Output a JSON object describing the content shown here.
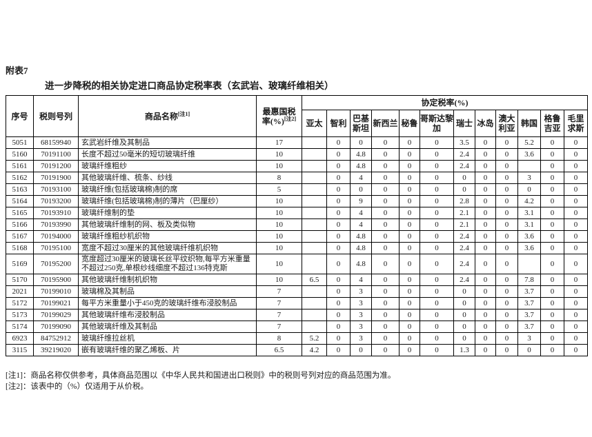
{
  "page": {
    "appendix_label": "附表7",
    "title": "进一步降税的相关协定进口商品协定税率表（玄武岩、玻璃纤维相关）",
    "notes": [
      "[注1]：商品名称仅供参考，具体商品范围以《中华人民共和国进出口税则》中的税则号列对应的商品范围为准。",
      "[注2]：该表中的（%）仅适用于从价税。"
    ]
  },
  "table": {
    "headers": {
      "serial": "序号",
      "tariff_code": "税则号列",
      "product_name": "商品名称",
      "product_name_sup": "[注1]",
      "mfn_line1": "最惠国税",
      "mfn_line2": "率(%)",
      "mfn_sup": "[注2]",
      "agreement_group": "协定税率(%)",
      "countries": [
        "亚太",
        "智利",
        "巴基斯坦",
        "新西兰",
        "秘鲁",
        "哥斯达黎加",
        "瑞士",
        "冰岛",
        "澳大利亚",
        "韩国",
        "格鲁吉亚",
        "毛里求斯"
      ]
    },
    "rows": [
      {
        "serial": "5051",
        "code": "68159940",
        "name": "玄武岩纤维及其制品",
        "mfn": "17",
        "rates": [
          "",
          "0",
          "0",
          "0",
          "0",
          "0",
          "3.5",
          "0",
          "0",
          "5.2",
          "0",
          "0"
        ]
      },
      {
        "serial": "5160",
        "code": "70191100",
        "name": "长度不超过50毫米的短切玻璃纤维",
        "mfn": "10",
        "rates": [
          "",
          "0",
          "4.8",
          "0",
          "0",
          "0",
          "2.4",
          "0",
          "0",
          "3.6",
          "0",
          "0"
        ]
      },
      {
        "serial": "5161",
        "code": "70191200",
        "name": "玻璃纤维粗纱",
        "mfn": "10",
        "rates": [
          "",
          "0",
          "4.8",
          "0",
          "0",
          "0",
          "2.4",
          "0",
          "0",
          "",
          "0",
          "0"
        ]
      },
      {
        "serial": "5162",
        "code": "70191900",
        "name": "其他玻璃纤维、梳条、纱线",
        "mfn": "8",
        "rates": [
          "",
          "0",
          "4",
          "0",
          "0",
          "0",
          "0",
          "0",
          "0",
          "3",
          "0",
          "0"
        ]
      },
      {
        "serial": "5163",
        "code": "70193100",
        "name": "玻璃纤维(包括玻璃棉)制的席",
        "mfn": "5",
        "rates": [
          "",
          "0",
          "0",
          "0",
          "0",
          "0",
          "0",
          "0",
          "0",
          "0",
          "0",
          "0"
        ]
      },
      {
        "serial": "5164",
        "code": "70193200",
        "name": "玻璃纤维(包括玻璃棉)制的薄片（巴厘纱）",
        "mfn": "10",
        "rates": [
          "",
          "0",
          "9",
          "0",
          "0",
          "0",
          "2.8",
          "0",
          "0",
          "4.2",
          "0",
          "0"
        ]
      },
      {
        "serial": "5165",
        "code": "70193910",
        "name": "玻璃纤维制的垫",
        "mfn": "10",
        "rates": [
          "",
          "0",
          "4",
          "0",
          "0",
          "0",
          "2.1",
          "0",
          "0",
          "3.1",
          "0",
          "0"
        ]
      },
      {
        "serial": "5166",
        "code": "70193990",
        "name": "其他玻璃纤维制的网、板及类似物",
        "mfn": "10",
        "rates": [
          "",
          "0",
          "4",
          "0",
          "0",
          "0",
          "2.1",
          "0",
          "0",
          "3.1",
          "0",
          "0"
        ]
      },
      {
        "serial": "5167",
        "code": "70194000",
        "name": "玻璃纤维粗纱机织物",
        "mfn": "10",
        "rates": [
          "",
          "0",
          "4.8",
          "0",
          "0",
          "0",
          "2.4",
          "0",
          "0",
          "3.6",
          "0",
          "0"
        ]
      },
      {
        "serial": "5168",
        "code": "70195100",
        "name": "宽度不超过30厘米的其他玻璃纤维机织物",
        "mfn": "10",
        "rates": [
          "",
          "0",
          "4.8",
          "0",
          "0",
          "0",
          "2.4",
          "0",
          "0",
          "3.6",
          "0",
          "0"
        ]
      },
      {
        "serial": "5169",
        "code": "70195200",
        "name": "宽度超过30厘米的玻璃长丝平纹织物,每平方米重量不超过250克,单根纱线细度不超过136特克斯",
        "mfn": "10",
        "rates": [
          "",
          "0",
          "4.8",
          "0",
          "0",
          "0",
          "2.4",
          "0",
          "0",
          "",
          "0",
          "0"
        ]
      },
      {
        "serial": "5170",
        "code": "70195900",
        "name": "其他玻璃纤维制机织物",
        "mfn": "10",
        "rates": [
          "6.5",
          "0",
          "4",
          "0",
          "0",
          "0",
          "2.4",
          "0",
          "0",
          "7.8",
          "0",
          "0"
        ]
      },
      {
        "serial": "2021",
        "code": "70199010",
        "name": "玻璃棉及其制品",
        "mfn": "7",
        "rates": [
          "",
          "0",
          "3",
          "0",
          "0",
          "0",
          "0",
          "0",
          "0",
          "3.7",
          "0",
          "0"
        ]
      },
      {
        "serial": "5172",
        "code": "70199021",
        "name": "每平方米重量小于450克的玻璃纤维布浸胶制品",
        "mfn": "7",
        "rates": [
          "",
          "0",
          "3",
          "0",
          "0",
          "0",
          "0",
          "0",
          "0",
          "3.7",
          "0",
          "0"
        ]
      },
      {
        "serial": "5173",
        "code": "70199029",
        "name": "其他玻璃纤维布浸胶制品",
        "mfn": "7",
        "rates": [
          "",
          "0",
          "3",
          "0",
          "0",
          "0",
          "0",
          "0",
          "0",
          "3.7",
          "0",
          "0"
        ]
      },
      {
        "serial": "5174",
        "code": "70199090",
        "name": "其他玻璃纤维及其制品",
        "mfn": "7",
        "rates": [
          "",
          "0",
          "3",
          "0",
          "0",
          "0",
          "0",
          "0",
          "0",
          "3.7",
          "0",
          "0"
        ]
      },
      {
        "serial": "6923",
        "code": "84752912",
        "name": "玻璃纤维拉丝机",
        "mfn": "8",
        "rates": [
          "5.2",
          "0",
          "3",
          "0",
          "0",
          "0",
          "0",
          "0",
          "0",
          "3",
          "0",
          "0"
        ]
      },
      {
        "serial": "3115",
        "code": "39219020",
        "name": "嵌有玻璃纤维的聚乙烯板、片",
        "mfn": "6.5",
        "rates": [
          "4.2",
          "0",
          "0",
          "0",
          "0",
          "0",
          "1.3",
          "0",
          "0",
          "0",
          "0",
          "0"
        ]
      }
    ]
  }
}
